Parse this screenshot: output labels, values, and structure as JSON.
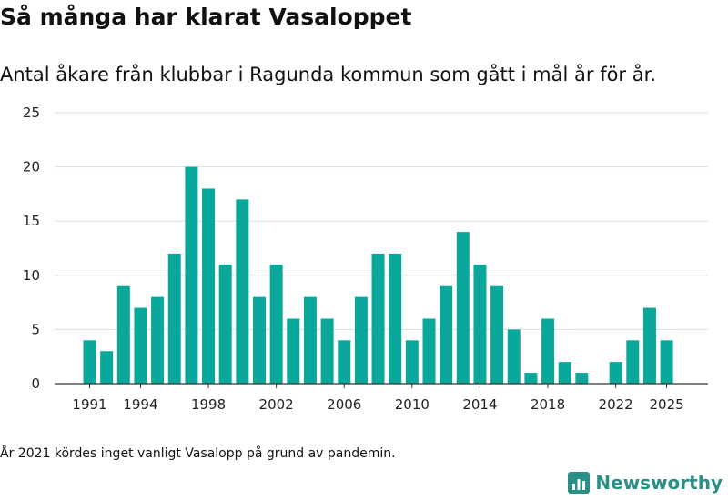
{
  "header": {
    "title": "Så många har klarat Vasaloppet",
    "subtitle": "Antal åkare från klubbar i Ragunda kommun som gått i mål år för år."
  },
  "footer": {
    "note": "År 2021 kördes inget vanligt Vasalopp på grund av pandemin.",
    "brand": "Newsworthy",
    "brand_icon": "newsworthy-logo-icon"
  },
  "colors": {
    "bar": "#0aa89b",
    "grid": "#dddddd",
    "axis": "#333333",
    "brand": "#2a8f86"
  },
  "chart_data": {
    "type": "bar",
    "title": "",
    "xlabel": "",
    "ylabel": "",
    "x": [
      1991,
      1992,
      1993,
      1994,
      1995,
      1996,
      1997,
      1998,
      1999,
      2000,
      2001,
      2002,
      2003,
      2004,
      2005,
      2006,
      2007,
      2008,
      2009,
      2010,
      2011,
      2012,
      2013,
      2014,
      2015,
      2016,
      2017,
      2018,
      2019,
      2020,
      2021,
      2022,
      2023,
      2024,
      2025
    ],
    "values": [
      4,
      3,
      9,
      7,
      8,
      12,
      20,
      18,
      11,
      17,
      8,
      11,
      6,
      8,
      6,
      4,
      8,
      12,
      12,
      4,
      6,
      9,
      14,
      11,
      9,
      5,
      1,
      6,
      2,
      1,
      0,
      2,
      4,
      7,
      4
    ],
    "ylim": [
      0,
      25
    ],
    "yticks": [
      0,
      5,
      10,
      15,
      20,
      25
    ],
    "xtick_labels": [
      1991,
      1994,
      1998,
      2002,
      2006,
      2010,
      2014,
      2018,
      2022,
      2025
    ],
    "grid": true,
    "legend": "none"
  }
}
